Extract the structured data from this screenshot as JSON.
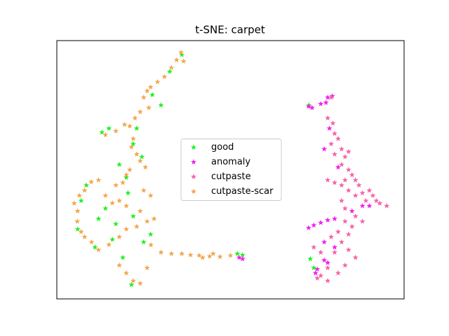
{
  "chart_data": {
    "type": "scatter",
    "title": "t-SNE: carpet",
    "legend": "center",
    "marker": "star",
    "xlim": [
      0,
      100
    ],
    "ylim": [
      0,
      100
    ],
    "xticks": [],
    "yticks": [],
    "series": [
      {
        "name": "good",
        "color": "#22f022",
        "points": [
          [
            36.0,
            94.5
          ],
          [
            32.5,
            88
          ],
          [
            27.5,
            79
          ],
          [
            15,
            66
          ],
          [
            13,
            64.5
          ],
          [
            22,
            60
          ],
          [
            24.5,
            55
          ],
          [
            20,
            47
          ],
          [
            8.5,
            44
          ],
          [
            7,
            38
          ],
          [
            14,
            35
          ],
          [
            17,
            29
          ],
          [
            6,
            27
          ],
          [
            16,
            23
          ],
          [
            11,
            20
          ],
          [
            19,
            16
          ],
          [
            21.5,
            5.5
          ],
          [
            25,
            22
          ],
          [
            22,
            32
          ],
          [
            27,
            25
          ],
          [
            20.5,
            41
          ],
          [
            18,
            52
          ],
          [
            23,
            66
          ],
          [
            12,
            31
          ],
          [
            52,
            17.5
          ],
          [
            53.5,
            17
          ],
          [
            72.6,
            75
          ],
          [
            73,
            15.5
          ],
          [
            74,
            12
          ],
          [
            30,
            75
          ]
        ]
      },
      {
        "name": "anomaly",
        "color": "#f020f0",
        "points": [
          [
            72.5,
            74.5
          ],
          [
            73.5,
            74
          ],
          [
            76,
            75.5
          ],
          [
            78,
            78
          ],
          [
            79.3,
            78.5
          ],
          [
            77.5,
            76
          ],
          [
            78.5,
            66
          ],
          [
            77,
            58
          ],
          [
            72.5,
            27.5
          ],
          [
            74,
            28.5
          ],
          [
            76,
            29.5
          ],
          [
            78,
            30.5
          ],
          [
            80,
            31
          ],
          [
            85,
            34
          ],
          [
            88,
            36
          ],
          [
            77,
            22
          ],
          [
            80,
            20
          ],
          [
            74.5,
            10
          ],
          [
            75,
            11.5
          ],
          [
            77,
            15
          ],
          [
            78,
            14
          ],
          [
            90,
            36
          ],
          [
            81,
            51
          ],
          [
            53.5,
            15.5
          ],
          [
            52.5,
            16
          ]
        ]
      },
      {
        "name": "cutpaste",
        "color": "#f464a8",
        "points": [
          [
            79,
            78
          ],
          [
            78,
            70
          ],
          [
            79.5,
            68
          ],
          [
            80,
            64
          ],
          [
            79,
            60
          ],
          [
            81,
            62
          ],
          [
            82,
            58
          ],
          [
            83,
            55
          ],
          [
            80,
            56
          ],
          [
            84,
            57
          ],
          [
            82,
            52
          ],
          [
            84,
            50
          ],
          [
            85,
            48
          ],
          [
            83,
            46
          ],
          [
            86,
            46
          ],
          [
            87,
            44
          ],
          [
            88,
            41
          ],
          [
            90,
            42
          ],
          [
            91,
            40
          ],
          [
            93,
            37
          ],
          [
            95,
            36
          ],
          [
            92,
            38
          ],
          [
            89,
            38
          ],
          [
            86,
            40
          ],
          [
            84,
            42
          ],
          [
            82,
            44
          ],
          [
            80,
            45
          ],
          [
            78,
            46
          ],
          [
            82,
            38
          ],
          [
            83,
            35
          ],
          [
            86,
            32
          ],
          [
            88,
            30
          ],
          [
            85,
            28
          ],
          [
            84,
            25
          ],
          [
            82,
            22
          ],
          [
            80,
            18
          ],
          [
            78,
            12
          ],
          [
            76,
            9
          ],
          [
            75,
            8
          ],
          [
            78,
            7
          ],
          [
            81,
            10
          ],
          [
            83,
            13
          ],
          [
            86,
            16
          ],
          [
            84,
            19
          ],
          [
            81,
            26
          ],
          [
            79,
            24
          ],
          [
            76,
            18
          ],
          [
            74,
            20
          ],
          [
            83,
            30
          ]
        ]
      },
      {
        "name": "cutpaste-scar",
        "color": "#f2a64e",
        "points": [
          [
            35.8,
            95.4
          ],
          [
            36.5,
            92
          ],
          [
            34.5,
            92.5
          ],
          [
            33,
            89.5
          ],
          [
            31,
            86
          ],
          [
            29,
            84
          ],
          [
            27,
            82
          ],
          [
            26,
            80.5
          ],
          [
            25,
            78
          ],
          [
            26.5,
            74
          ],
          [
            24,
            72.4
          ],
          [
            22.5,
            70
          ],
          [
            21,
            66.9
          ],
          [
            19.5,
            67.5
          ],
          [
            17,
            65
          ],
          [
            14,
            63.5
          ],
          [
            22,
            62
          ],
          [
            21.5,
            58.8
          ],
          [
            23,
            56
          ],
          [
            24,
            53.4
          ],
          [
            25.5,
            51
          ],
          [
            21,
            50
          ],
          [
            20,
            48
          ],
          [
            19,
            45
          ],
          [
            17,
            44
          ],
          [
            12,
            46
          ],
          [
            9.9,
            45.3
          ],
          [
            8,
            42
          ],
          [
            6.5,
            40
          ],
          [
            5,
            37
          ],
          [
            6,
            34
          ],
          [
            5.9,
            30
          ],
          [
            7,
            26
          ],
          [
            8,
            24
          ],
          [
            10,
            22
          ],
          [
            12,
            19
          ],
          [
            15,
            21
          ],
          [
            18,
            24
          ],
          [
            20,
            27
          ],
          [
            23,
            28
          ],
          [
            26,
            30
          ],
          [
            24,
            34
          ],
          [
            20,
            36
          ],
          [
            18,
            38
          ],
          [
            16,
            37.1
          ],
          [
            14,
            40
          ],
          [
            18,
            13
          ],
          [
            20,
            10
          ],
          [
            22,
            7
          ],
          [
            24,
            6
          ],
          [
            26,
            12
          ],
          [
            27.1,
            20.9
          ],
          [
            30,
            18
          ],
          [
            33,
            17.5
          ],
          [
            36,
            17.5
          ],
          [
            38.5,
            17
          ],
          [
            41,
            16.8
          ],
          [
            44,
            16.5
          ],
          [
            47,
            16.3
          ],
          [
            50,
            16.8
          ],
          [
            45,
            17.5
          ],
          [
            42,
            16
          ],
          [
            28,
            31
          ],
          [
            27,
            40
          ],
          [
            25,
            42
          ]
        ]
      }
    ]
  }
}
